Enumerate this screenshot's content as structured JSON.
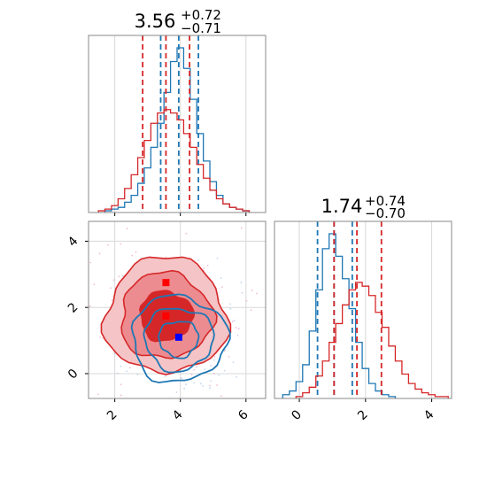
{
  "chart_data": {
    "type": "corner",
    "panels": [
      {
        "panel": "histogram-1",
        "title": {
          "value": "3.56",
          "sup": "+0.72",
          "sub": "−0.71"
        },
        "xlim": [
          1.2,
          6.6
        ],
        "xticks": [
          2,
          4,
          6
        ],
        "grid": true,
        "series": [
          {
            "color": "#1f77b4",
            "quantiles": [
              3.4,
              3.95,
              4.55
            ],
            "x": [
              1.8,
              2.0,
              2.2,
              2.4,
              2.6,
              2.8,
              3.0,
              3.2,
              3.4,
              3.6,
              3.8,
              4.0,
              4.2,
              4.4,
              4.6,
              4.8,
              5.0,
              5.2,
              5.4,
              5.6,
              5.8,
              6.0
            ],
            "counts": [
              1,
              2,
              3,
              6,
              10,
              17,
              26,
              38,
              52,
              70,
              88,
              96,
              84,
              66,
              46,
              30,
              18,
              10,
              5,
              3,
              2,
              1
            ]
          },
          {
            "color": "#d62728",
            "quantiles": [
              2.85,
              3.56,
              4.28
            ],
            "x": [
              1.6,
              1.8,
              2.0,
              2.2,
              2.4,
              2.6,
              2.8,
              3.0,
              3.2,
              3.4,
              3.6,
              3.8,
              4.0,
              4.2,
              4.4,
              4.6,
              4.8,
              5.0,
              5.2,
              5.4,
              5.6,
              5.8,
              6.0
            ],
            "counts": [
              1,
              2,
              4,
              8,
              14,
              22,
              32,
              42,
              52,
              58,
              60,
              58,
              54,
              46,
              38,
              28,
              20,
              13,
              8,
              5,
              3,
              2,
              1
            ]
          }
        ]
      },
      {
        "panel": "histogram-2",
        "title": {
          "value": "1.74",
          "sup": "+0.74",
          "sub": "−0.70"
        },
        "xlim": [
          -0.75,
          4.6
        ],
        "xticks": [
          0,
          2,
          4
        ],
        "grid": true,
        "series": [
          {
            "color": "#1f77b4",
            "quantiles": [
              0.55,
              1.05,
              1.6
            ],
            "x": [
              -0.4,
              -0.2,
              0.0,
              0.2,
              0.4,
              0.6,
              0.8,
              1.0,
              1.2,
              1.4,
              1.6,
              1.8,
              2.0,
              2.2,
              2.4,
              2.6,
              2.8
            ],
            "counts": [
              2,
              4,
              9,
              18,
              36,
              58,
              80,
              88,
              76,
              64,
              48,
              30,
              16,
              8,
              4,
              2,
              1
            ]
          },
          {
            "color": "#d62728",
            "quantiles": [
              1.05,
              1.74,
              2.48
            ],
            "x": [
              0.0,
              0.2,
              0.4,
              0.6,
              0.8,
              1.0,
              1.2,
              1.4,
              1.6,
              1.8,
              2.0,
              2.2,
              2.4,
              2.6,
              2.8,
              3.0,
              3.2,
              3.4,
              3.6,
              3.8,
              4.0,
              4.2,
              4.4
            ],
            "counts": [
              1,
              3,
              6,
              12,
              20,
              30,
              40,
              50,
              58,
              62,
              60,
              55,
              46,
              38,
              28,
              20,
              13,
              8,
              5,
              3,
              2,
              1,
              1
            ]
          }
        ]
      },
      {
        "panel": "contour-2d",
        "xlim": [
          1.2,
          6.6
        ],
        "ylim": [
          -0.75,
          4.6
        ],
        "xticks": [
          2,
          4,
          6
        ],
        "yticks": [
          0,
          2,
          4
        ],
        "grid": true,
        "series": [
          {
            "color": "#d62728",
            "filled": true,
            "center": [
              3.56,
              1.74
            ],
            "radii": [
              [
                0.8,
                0.75
              ],
              [
                1.4,
                1.3
              ],
              [
                1.85,
                1.75
              ]
            ],
            "markers": [
              [
                3.56,
                2.75
              ],
              [
                3.56,
                1.74
              ]
            ]
          },
          {
            "color": "#1f77b4",
            "filled": false,
            "center": [
              3.95,
              1.05
            ],
            "radii": [
              [
                0.6,
                0.55
              ],
              [
                1.05,
                0.95
              ],
              [
                1.45,
                1.3
              ]
            ],
            "markers": [
              [
                3.95,
                1.1
              ]
            ]
          }
        ]
      }
    ]
  }
}
